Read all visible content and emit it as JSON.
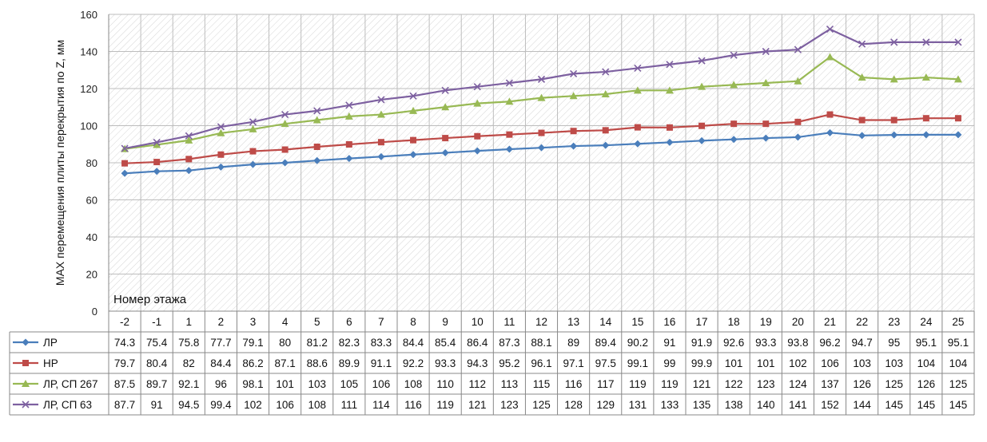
{
  "chart_data": {
    "type": "line",
    "title": "",
    "xlabel": "Номер этажа",
    "ylabel": "MAX перемещения плиты перекрытия по Z, мм",
    "ylim": [
      0,
      160
    ],
    "yticks": [
      0,
      20,
      40,
      60,
      80,
      100,
      120,
      140,
      160
    ],
    "grid": true,
    "legend": "data-table-left",
    "categories": [
      "-2",
      "-1",
      "1",
      "2",
      "3",
      "4",
      "5",
      "6",
      "7",
      "8",
      "9",
      "10",
      "11",
      "12",
      "13",
      "14",
      "15",
      "16",
      "17",
      "18",
      "19",
      "20",
      "21",
      "22",
      "23",
      "24",
      "25"
    ],
    "series": [
      {
        "name": "ЛР",
        "color": "#4a7ebb",
        "marker": "diamond",
        "values": [
          74.3,
          75.4,
          75.8,
          77.7,
          79.1,
          80,
          81.2,
          82.3,
          83.3,
          84.4,
          85.4,
          86.4,
          87.3,
          88.1,
          89,
          89.4,
          90.2,
          91,
          91.9,
          92.6,
          93.3,
          93.8,
          96.2,
          94.7,
          95,
          95.1,
          95.1
        ]
      },
      {
        "name": "НР",
        "color": "#be4b48",
        "marker": "square",
        "values": [
          79.7,
          80.4,
          82,
          84.4,
          86.2,
          87.1,
          88.6,
          89.9,
          91.1,
          92.2,
          93.3,
          94.3,
          95.2,
          96.1,
          97.1,
          97.5,
          99.1,
          99,
          99.9,
          101,
          101,
          102,
          106,
          103,
          103,
          104,
          104
        ]
      },
      {
        "name": "ЛР, СП 267",
        "color": "#98b954",
        "marker": "triangle",
        "values": [
          87.5,
          89.7,
          92.1,
          96,
          98.1,
          101,
          103,
          105,
          106,
          108,
          110,
          112,
          113,
          115,
          116,
          117,
          119,
          119,
          121,
          122,
          123,
          124,
          137,
          126,
          125,
          126,
          125
        ]
      },
      {
        "name": "ЛР, СП 63",
        "color": "#7d60a0",
        "marker": "x",
        "values": [
          87.7,
          91,
          94.5,
          99.4,
          102,
          106,
          108,
          111,
          114,
          116,
          119,
          121,
          123,
          125,
          128,
          129,
          131,
          133,
          135,
          138,
          140,
          141,
          152,
          144,
          145,
          145,
          145
        ]
      }
    ]
  }
}
